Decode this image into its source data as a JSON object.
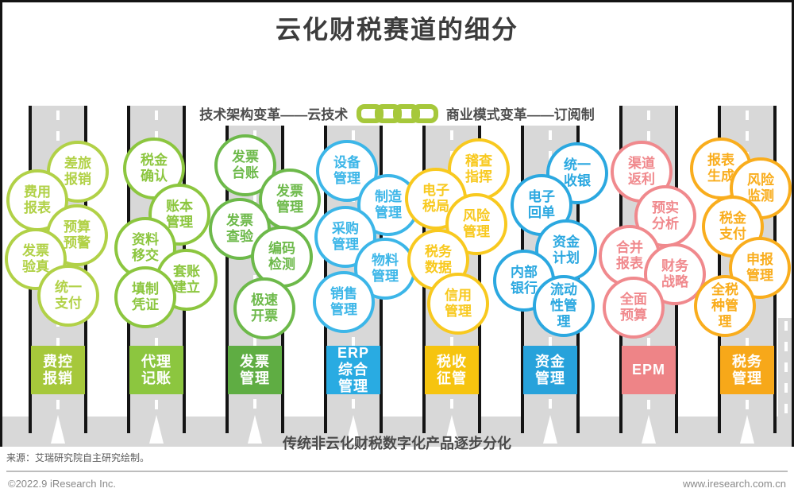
{
  "title": "云化财税赛道的细分",
  "subtitle": {
    "left": "技术架构变革——云技术",
    "right": "商业模式变革——订阅制"
  },
  "accent_colors": {
    "chain_green": "#a6c83b",
    "road_gray": "#d8d8d8",
    "lane_line_black": "#141414"
  },
  "lanes": [
    {
      "label_lines": [
        "费控",
        "报销"
      ],
      "color": "#a6c83b",
      "bubble_color": "#b1d147",
      "bubbles": [
        [
          "差旅",
          "报销"
        ],
        [
          "费用",
          "报表"
        ],
        [
          "预算",
          "预警"
        ],
        [
          "发票",
          "验真"
        ],
        [
          "统一",
          "支付"
        ]
      ]
    },
    {
      "label_lines": [
        "代理",
        "记账"
      ],
      "color": "#8cc63f",
      "bubble_color": "#8cc63f",
      "bubbles": [
        [
          "税金",
          "确认"
        ],
        [
          "账本",
          "管理"
        ],
        [
          "资料",
          "移交"
        ],
        [
          "套账",
          "建立"
        ],
        [
          "填制",
          "凭证"
        ]
      ]
    },
    {
      "label_lines": [
        "发票",
        "管理"
      ],
      "color": "#5fad43",
      "bubble_color": "#6db94a",
      "bubbles": [
        [
          "发票",
          "台账"
        ],
        [
          "发票",
          "管理"
        ],
        [
          "发票",
          "查验"
        ],
        [
          "编码",
          "检测"
        ],
        [
          "极速",
          "开票"
        ]
      ]
    },
    {
      "label_lines": [
        "ERP",
        "综合",
        "管理"
      ],
      "color": "#29abe2",
      "bubble_color": "#3cb6e8",
      "bubbles": [
        [
          "设备",
          "管理"
        ],
        [
          "制造",
          "管理"
        ],
        [
          "采购",
          "管理"
        ],
        [
          "物料",
          "管理"
        ],
        [
          "销售",
          "管理"
        ]
      ]
    },
    {
      "label_lines": [
        "税收",
        "征管"
      ],
      "color": "#f6c40f",
      "bubble_color": "#f8c91f",
      "bubbles": [
        [
          "稽查",
          "指挥"
        ],
        [
          "电子",
          "税局"
        ],
        [
          "风险",
          "管理"
        ],
        [
          "税务",
          "数据"
        ],
        [
          "信用",
          "管理"
        ]
      ]
    },
    {
      "label_lines": [
        "资金",
        "管理"
      ],
      "color": "#27a2db",
      "bubble_color": "#2ba8e0",
      "bubbles": [
        [
          "统一",
          "收银"
        ],
        [
          "电子",
          "回单"
        ],
        [
          "资金",
          "计划"
        ],
        [
          "内部",
          "银行"
        ],
        [
          "流动",
          "性管",
          "理"
        ]
      ]
    },
    {
      "label_lines": [
        "EPM"
      ],
      "color": "#ee8487",
      "bubble_color": "#f0898d",
      "bubbles": [
        [
          "渠道",
          "返利"
        ],
        [
          "预实",
          "分析"
        ],
        [
          "合并",
          "报表"
        ],
        [
          "财务",
          "战略"
        ],
        [
          "全面",
          "预算"
        ]
      ]
    },
    {
      "label_lines": [
        "税务",
        "管理"
      ],
      "color": "#f7a819",
      "bubble_color": "#f9ad1d",
      "bubbles": [
        [
          "报表",
          "生成"
        ],
        [
          "风险",
          "监测"
        ],
        [
          "税金",
          "支付"
        ],
        [
          "申报",
          "管理"
        ],
        [
          "全税",
          "种管",
          "理"
        ]
      ]
    }
  ],
  "bottom_band_text": "传统非云化财税数字化产品逐步分化",
  "source_text": "来源：艾瑞研究院自主研究绘制。",
  "footer": {
    "copyright": "©2022.9 iResearch Inc.",
    "website": "www.iresearch.com.cn"
  }
}
